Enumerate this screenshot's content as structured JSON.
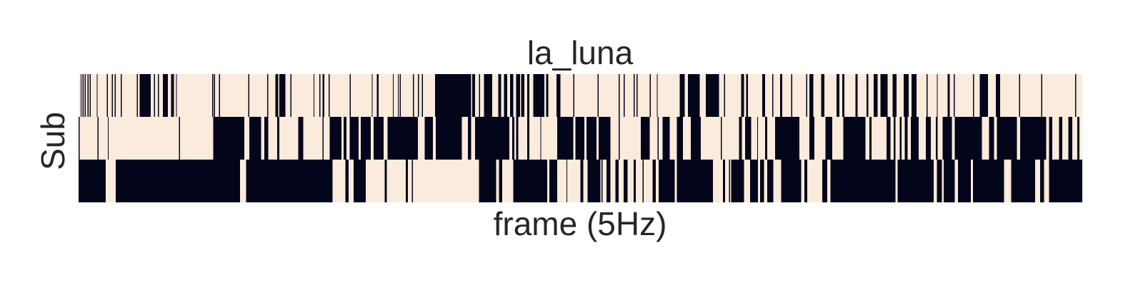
{
  "chart_data": {
    "type": "heatmap",
    "title": "la_luna",
    "xlabel": "frame (5Hz)",
    "ylabel": "Sub",
    "grid": false,
    "legend": "none",
    "xticks_shown": false,
    "yticks_shown": false,
    "n_frames": 1000,
    "rows": 3,
    "colors": {
      "0": "#faebdd",
      "1": "#03051a"
    },
    "series": [
      {
        "row": 1,
        "active_segments": [
          [
            2,
            3
          ],
          [
            4,
            5
          ],
          [
            6,
            7
          ],
          [
            9,
            10
          ],
          [
            11,
            12
          ],
          [
            18,
            19
          ],
          [
            28,
            29
          ],
          [
            33,
            34
          ],
          [
            36,
            37
          ],
          [
            42,
            43
          ],
          [
            58,
            59
          ],
          [
            61,
            72
          ],
          [
            75,
            76
          ],
          [
            79,
            80
          ],
          [
            84,
            89
          ],
          [
            92,
            95
          ],
          [
            97,
            98
          ],
          [
            133,
            134
          ],
          [
            135,
            136
          ],
          [
            140,
            141
          ],
          [
            169,
            170
          ],
          [
            188,
            189
          ],
          [
            196,
            199
          ],
          [
            200,
            206
          ],
          [
            211,
            212
          ],
          [
            234,
            235
          ],
          [
            240,
            241
          ],
          [
            243,
            245
          ],
          [
            249,
            250
          ],
          [
            270,
            271
          ],
          [
            292,
            293
          ],
          [
            297,
            299
          ],
          [
            313,
            314
          ],
          [
            318,
            319
          ],
          [
            320,
            321
          ],
          [
            333,
            334
          ],
          [
            338,
            339
          ],
          [
            342,
            343
          ],
          [
            355,
            391
          ],
          [
            392,
            395
          ],
          [
            399,
            400
          ],
          [
            404,
            412
          ],
          [
            418,
            421
          ],
          [
            424,
            427
          ],
          [
            430,
            433
          ],
          [
            436,
            440
          ],
          [
            441,
            444
          ],
          [
            447,
            449
          ],
          [
            453,
            464
          ],
          [
            466,
            468
          ],
          [
            476,
            480
          ],
          [
            493,
            494
          ],
          [
            517,
            518
          ],
          [
            538,
            539
          ],
          [
            543,
            544
          ],
          [
            553,
            554
          ],
          [
            556,
            557
          ],
          [
            569,
            570
          ],
          [
            576,
            577
          ],
          [
            599,
            604
          ],
          [
            607,
            619
          ],
          [
            625,
            638
          ],
          [
            643,
            644
          ],
          [
            660,
            663
          ],
          [
            665,
            667
          ],
          [
            681,
            684
          ],
          [
            691,
            692
          ],
          [
            699,
            701
          ],
          [
            710,
            711
          ],
          [
            725,
            726
          ],
          [
            728,
            732
          ],
          [
            740,
            743
          ],
          [
            755,
            758
          ],
          [
            761,
            763
          ],
          [
            774,
            776
          ],
          [
            785,
            787
          ],
          [
            792,
            796
          ],
          [
            799,
            806
          ],
          [
            811,
            815
          ],
          [
            822,
            827
          ],
          [
            830,
            835
          ],
          [
            845,
            846
          ],
          [
            855,
            856
          ],
          [
            866,
            868
          ],
          [
            872,
            873
          ],
          [
            891,
            892
          ],
          [
            898,
            906
          ],
          [
            914,
            918
          ],
          [
            937,
            938
          ],
          [
            959,
            960
          ],
          [
            993,
            994
          ]
        ]
      },
      {
        "row": 2,
        "active_segments": [
          [
            0,
            1
          ],
          [
            19,
            20
          ],
          [
            29,
            30
          ],
          [
            100,
            101
          ],
          [
            134,
            165
          ],
          [
            170,
            182
          ],
          [
            185,
            189
          ],
          [
            198,
            200
          ],
          [
            219,
            224
          ],
          [
            243,
            244
          ],
          [
            250,
            262
          ],
          [
            264,
            267
          ],
          [
            270,
            279
          ],
          [
            281,
            291
          ],
          [
            294,
            304
          ],
          [
            308,
            338
          ],
          [
            345,
            353
          ],
          [
            356,
            382
          ],
          [
            388,
            391
          ],
          [
            395,
            429
          ],
          [
            432,
            434
          ],
          [
            436,
            438
          ],
          [
            447,
            449
          ],
          [
            460,
            461
          ],
          [
            477,
            493
          ],
          [
            495,
            504
          ],
          [
            506,
            516
          ],
          [
            518,
            530
          ],
          [
            538,
            539
          ],
          [
            560,
            569
          ],
          [
            577,
            578
          ],
          [
            582,
            589
          ],
          [
            596,
            602
          ],
          [
            610,
            620
          ],
          [
            640,
            641
          ],
          [
            658,
            661
          ],
          [
            664,
            670
          ],
          [
            676,
            677
          ],
          [
            684,
            686
          ],
          [
            694,
            718
          ],
          [
            728,
            733
          ],
          [
            744,
            751
          ],
          [
            762,
            784
          ],
          [
            788,
            790
          ],
          [
            805,
            809
          ],
          [
            812,
            814
          ],
          [
            818,
            820
          ],
          [
            823,
            826
          ],
          [
            829,
            837
          ],
          [
            844,
            849
          ],
          [
            854,
            856
          ],
          [
            861,
            870
          ],
          [
            873,
            900
          ],
          [
            907,
            912
          ],
          [
            915,
            935
          ],
          [
            938,
            964
          ],
          [
            967,
            970
          ],
          [
            977,
            980
          ],
          [
            986,
            990
          ],
          [
            995,
            997
          ]
        ]
      },
      {
        "row": 3,
        "active_segments": [
          [
            0,
            27
          ],
          [
            37,
            161
          ],
          [
            167,
            253
          ],
          [
            266,
            269
          ],
          [
            274,
            286
          ],
          [
            305,
            307
          ],
          [
            326,
            328
          ],
          [
            332,
            333
          ],
          [
            399,
            416
          ],
          [
            419,
            422
          ],
          [
            433,
            467
          ],
          [
            469,
            477
          ],
          [
            486,
            487
          ],
          [
            500,
            503
          ],
          [
            507,
            520
          ],
          [
            521,
            522
          ],
          [
            526,
            530
          ],
          [
            535,
            538
          ],
          [
            543,
            547
          ],
          [
            553,
            555
          ],
          [
            562,
            563
          ],
          [
            572,
            575
          ],
          [
            578,
            594
          ],
          [
            596,
            632
          ],
          [
            642,
            644
          ],
          [
            648,
            649
          ],
          [
            650,
            663
          ],
          [
            669,
            677
          ],
          [
            679,
            683
          ],
          [
            686,
            692
          ],
          [
            700,
            720
          ],
          [
            723,
            726
          ],
          [
            741,
            746
          ],
          [
            749,
            814
          ],
          [
            816,
            852
          ],
          [
            855,
            860
          ],
          [
            862,
            873
          ],
          [
            876,
            889
          ],
          [
            891,
            922
          ],
          [
            929,
            932
          ],
          [
            932,
            953
          ],
          [
            958,
            962
          ],
          [
            967,
            1000
          ]
        ]
      }
    ]
  }
}
